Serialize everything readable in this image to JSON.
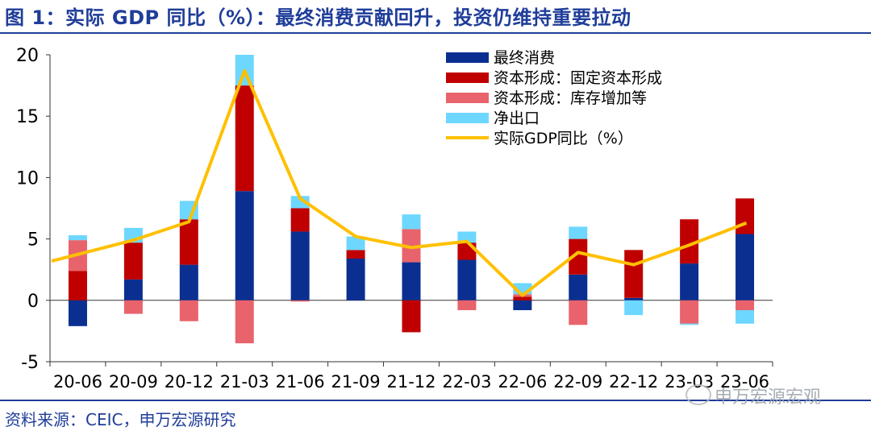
{
  "header": {
    "title": "图 1：实际 GDP 同比（%）：最终消费贡献回升，投资仍维持重要拉动"
  },
  "footer": {
    "source": "资料来源：CEIC，申万宏源研究"
  },
  "watermark": {
    "text": "申万宏源宏观"
  },
  "chart_data": {
    "type": "bar",
    "stacked": true,
    "categories": [
      "20-06",
      "20-09",
      "20-12",
      "21-03",
      "21-06",
      "21-09",
      "21-12",
      "22-03",
      "22-06",
      "22-09",
      "22-12",
      "23-03",
      "23-06"
    ],
    "ylim": [
      -5,
      20
    ],
    "yticks": [
      -5,
      0,
      5,
      10,
      15,
      20
    ],
    "grid": false,
    "legend_position": "top-right",
    "series": [
      {
        "name": "最终消费",
        "type": "bar",
        "color": "#0a2f91",
        "values": [
          -2.1,
          1.7,
          2.9,
          8.9,
          5.6,
          3.4,
          3.1,
          3.3,
          -0.8,
          2.1,
          0.2,
          3.0,
          5.4
        ]
      },
      {
        "name": "资本形成：固定资本形成",
        "type": "bar",
        "color": "#c00000",
        "values": [
          2.4,
          3.0,
          3.7,
          8.6,
          1.9,
          0.7,
          -2.6,
          1.4,
          0.3,
          2.9,
          3.9,
          3.6,
          2.9
        ]
      },
      {
        "name": "资本形成：库存增加等",
        "type": "bar",
        "color": "#e8636b",
        "values": [
          2.5,
          -1.1,
          -1.7,
          -3.5,
          -0.1,
          0.0,
          2.7,
          -0.8,
          0.2,
          -2.0,
          0.0,
          -1.9,
          -0.8
        ]
      },
      {
        "name": "净出口",
        "type": "bar",
        "color": "#6dd7ff",
        "values": [
          0.4,
          1.2,
          1.5,
          2.5,
          1.0,
          1.1,
          1.2,
          0.9,
          0.9,
          1.0,
          -1.2,
          -0.1,
          -1.1
        ]
      },
      {
        "name": "实际GDP同比（%）",
        "type": "line",
        "color": "#ffc000",
        "values": [
          3.2,
          4.9,
          6.4,
          18.7,
          8.3,
          5.2,
          4.3,
          4.8,
          0.4,
          3.9,
          2.9,
          4.5,
          6.3
        ]
      }
    ]
  }
}
